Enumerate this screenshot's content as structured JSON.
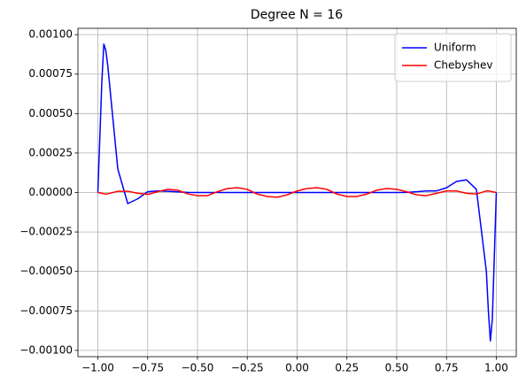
{
  "chart_data": {
    "type": "line",
    "title": "Degree N = 16",
    "x": [
      -1,
      -0.98,
      -0.97,
      -0.96,
      -0.95,
      -0.9,
      -0.85,
      -0.8,
      -0.75,
      -0.7,
      -0.65,
      -0.6,
      -0.55,
      -0.5,
      -0.45,
      -0.4,
      -0.35,
      -0.3,
      -0.25,
      -0.2,
      -0.15,
      -0.1,
      -0.05,
      0,
      0.05,
      0.1,
      0.15,
      0.2,
      0.25,
      0.3,
      0.35,
      0.4,
      0.45,
      0.5,
      0.55,
      0.6,
      0.65,
      0.7,
      0.75,
      0.8,
      0.85,
      0.9,
      0.95,
      0.96,
      0.97,
      0.98,
      1
    ],
    "series": [
      {
        "name": "Uniform",
        "color": "#0000ff",
        "values": [
          0,
          0.0007,
          0.00094,
          0.0009,
          0.0008,
          0.00015,
          -7e-05,
          -4e-05,
          5e-06,
          1e-05,
          8e-06,
          4e-06,
          1e-06,
          0,
          0,
          0,
          0,
          0,
          0,
          0,
          0,
          0,
          0,
          0,
          0,
          0,
          0,
          0,
          0,
          0,
          0,
          0,
          0,
          0,
          1e-06,
          5e-06,
          1e-05,
          1e-05,
          3e-05,
          7e-05,
          8e-05,
          2e-05,
          -0.0005,
          -0.00075,
          -0.00094,
          -0.0008,
          0
        ]
      },
      {
        "name": "Chebyshev",
        "color": "#ff0000",
        "values": [
          0,
          -5e-06,
          -8e-06,
          -1e-05,
          -8e-06,
          8e-06,
          8e-06,
          -5e-06,
          -1.2e-05,
          5e-06,
          2e-05,
          1.5e-05,
          -8e-06,
          -2e-05,
          -2e-05,
          5e-06,
          2.5e-05,
          3e-05,
          2e-05,
          -1e-05,
          -2.5e-05,
          -3e-05,
          -1.5e-05,
          1e-05,
          2.5e-05,
          3e-05,
          2e-05,
          -1e-05,
          -2.5e-05,
          -2.5e-05,
          -1e-05,
          1.5e-05,
          2.5e-05,
          2e-05,
          5e-06,
          -1.5e-05,
          -2e-05,
          -5e-06,
          1e-05,
          1e-05,
          -5e-06,
          -1e-05,
          1e-05,
          1e-05,
          8e-06,
          5e-06,
          0
        ]
      }
    ],
    "xlim": [
      -1.1,
      1.1
    ],
    "ylim": [
      -0.00104,
      0.00104
    ],
    "xticks": [
      {
        "value": -1,
        "label": "−1.00"
      },
      {
        "value": -0.75,
        "label": "−0.75"
      },
      {
        "value": -0.5,
        "label": "−0.50"
      },
      {
        "value": -0.25,
        "label": "−0.25"
      },
      {
        "value": 0,
        "label": "0.00"
      },
      {
        "value": 0.25,
        "label": "0.25"
      },
      {
        "value": 0.5,
        "label": "0.50"
      },
      {
        "value": 0.75,
        "label": "0.75"
      },
      {
        "value": 1,
        "label": "1.00"
      }
    ],
    "yticks": [
      {
        "value": -0.001,
        "label": "−0.00100"
      },
      {
        "value": -0.00075,
        "label": "−0.00075"
      },
      {
        "value": -0.0005,
        "label": "−0.00050"
      },
      {
        "value": -0.00025,
        "label": "−0.00025"
      },
      {
        "value": 0,
        "label": "0.00000"
      },
      {
        "value": 0.00025,
        "label": "0.00025"
      },
      {
        "value": 0.0005,
        "label": "0.00050"
      },
      {
        "value": 0.00075,
        "label": "0.00075"
      },
      {
        "value": 0.001,
        "label": "0.00100"
      }
    ],
    "grid": true,
    "legend": "upper right"
  }
}
